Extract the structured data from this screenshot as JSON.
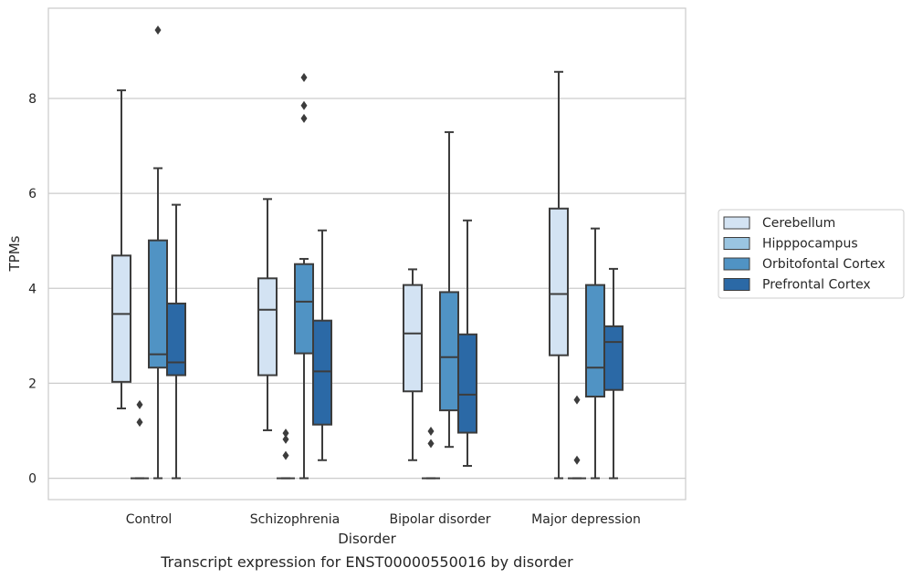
{
  "caption": "Transcript expression for ENST00000550016 by disorder",
  "chart_data": {
    "type": "box",
    "xlabel": "Disorder",
    "ylabel": "TPMs",
    "ylim": [
      -0.45,
      9.9
    ],
    "yticks": [
      0,
      2,
      4,
      6,
      8
    ],
    "grid": true,
    "legend_position": "right",
    "categories": [
      "Control",
      "Schizophrenia",
      "Bipolar disorder",
      "Major depression"
    ],
    "series": [
      {
        "name": "Cerebellum",
        "color": "#d3e3f3",
        "boxes": [
          {
            "whisker_low": 1.47,
            "q1": 2.03,
            "median": 3.46,
            "q3": 4.69,
            "whisker_high": 8.17,
            "outliers": []
          },
          {
            "whisker_low": 1.01,
            "q1": 2.17,
            "median": 3.55,
            "q3": 4.21,
            "whisker_high": 5.88,
            "outliers": []
          },
          {
            "whisker_low": 0.38,
            "q1": 1.83,
            "median": 3.05,
            "q3": 4.07,
            "whisker_high": 4.4,
            "outliers": []
          },
          {
            "whisker_low": 0.0,
            "q1": 2.59,
            "median": 3.88,
            "q3": 5.68,
            "whisker_high": 8.56,
            "outliers": []
          }
        ]
      },
      {
        "name": "Hipppocampus",
        "color": "#9ac5e1",
        "boxes": [
          {
            "whisker_low": 0.0,
            "q1": 0.0,
            "median": 0.0,
            "q3": 0.0,
            "whisker_high": 0.0,
            "outliers": [
              1.55,
              1.18
            ]
          },
          {
            "whisker_low": 0.0,
            "q1": 0.0,
            "median": 0.0,
            "q3": 0.0,
            "whisker_high": 0.0,
            "outliers": [
              0.95,
              0.82,
              0.48
            ]
          },
          {
            "whisker_low": 0.0,
            "q1": 0.0,
            "median": 0.0,
            "q3": 0.0,
            "whisker_high": 0.0,
            "outliers": [
              0.99,
              0.73
            ]
          },
          {
            "whisker_low": 0.0,
            "q1": 0.0,
            "median": 0.0,
            "q3": 0.0,
            "whisker_high": 0.0,
            "outliers": [
              1.65,
              0.38
            ]
          }
        ]
      },
      {
        "name": "Orbitofontal Cortex",
        "color": "#5093c4",
        "boxes": [
          {
            "whisker_low": 0.0,
            "q1": 2.33,
            "median": 2.61,
            "q3": 5.01,
            "whisker_high": 6.53,
            "outliers": [
              9.44
            ]
          },
          {
            "whisker_low": 0.0,
            "q1": 2.63,
            "median": 3.72,
            "q3": 4.51,
            "whisker_high": 4.62,
            "outliers": [
              8.44,
              7.85,
              7.58
            ]
          },
          {
            "whisker_low": 0.66,
            "q1": 1.43,
            "median": 2.55,
            "q3": 3.92,
            "whisker_high": 7.29,
            "outliers": []
          },
          {
            "whisker_low": 0.0,
            "q1": 1.72,
            "median": 2.33,
            "q3": 4.07,
            "whisker_high": 5.26,
            "outliers": []
          }
        ]
      },
      {
        "name": "Prefrontal Cortex",
        "color": "#2b69a6",
        "boxes": [
          {
            "whisker_low": 0.0,
            "q1": 2.17,
            "median": 2.44,
            "q3": 3.68,
            "whisker_high": 5.76,
            "outliers": []
          },
          {
            "whisker_low": 0.38,
            "q1": 1.13,
            "median": 2.25,
            "q3": 3.32,
            "whisker_high": 5.22,
            "outliers": []
          },
          {
            "whisker_low": 0.26,
            "q1": 0.96,
            "median": 1.76,
            "q3": 3.03,
            "whisker_high": 5.43,
            "outliers": []
          },
          {
            "whisker_low": 0.0,
            "q1": 1.86,
            "median": 2.87,
            "q3": 3.2,
            "whisker_high": 4.41,
            "outliers": []
          }
        ]
      }
    ]
  }
}
